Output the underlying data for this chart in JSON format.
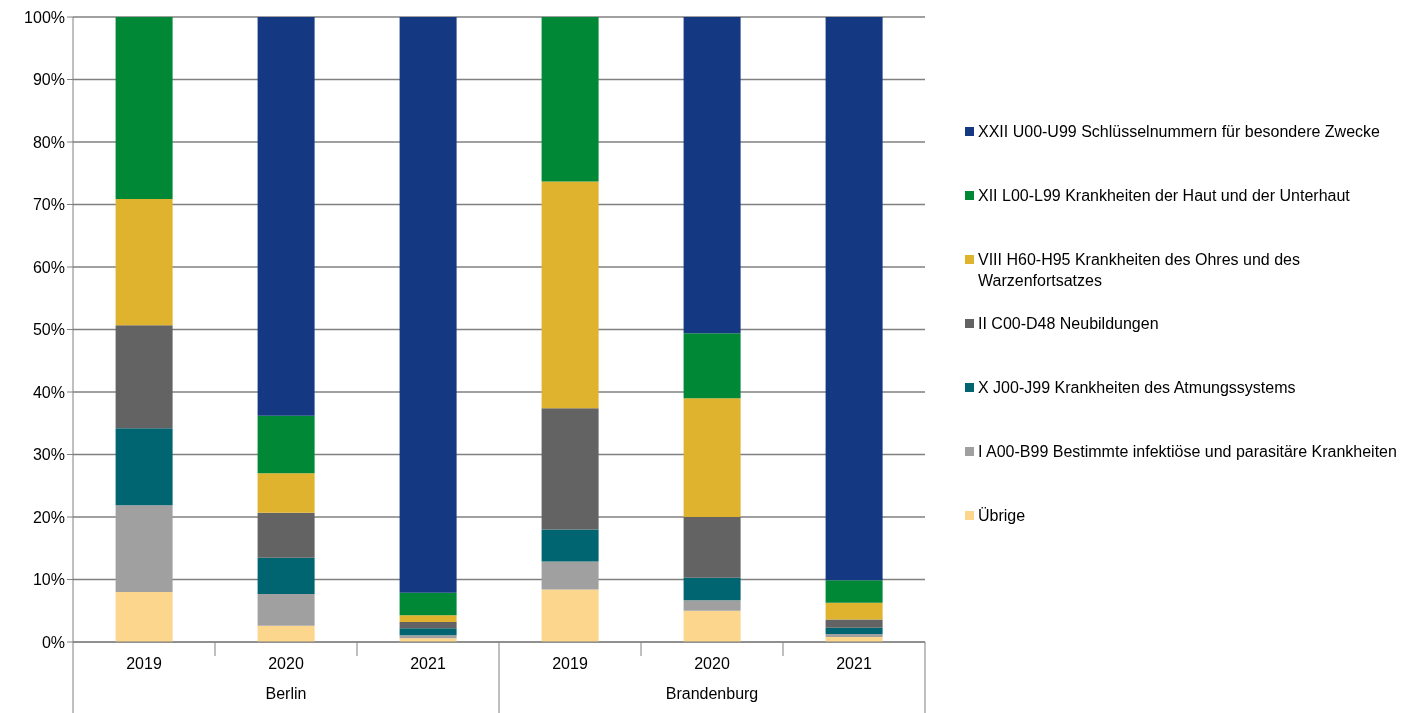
{
  "chart_data": {
    "type": "bar",
    "stacked": true,
    "categories": [
      "2019",
      "2020",
      "2021",
      "2019",
      "2020",
      "2021"
    ],
    "annotations": [
      "Berlin",
      "Brandenburg"
    ],
    "series": [
      {
        "name": "Übrige",
        "color": "#fcd68c",
        "values": [
          8.0,
          2.6,
          0.6,
          8.4,
          5.0,
          0.8
        ]
      },
      {
        "name": "I A00-B99 Bestimmte infektiöse und parasitäre Krankheiten",
        "color": "#a0a0a0",
        "values": [
          13.9,
          5.1,
          0.5,
          4.5,
          1.7,
          0.5
        ]
      },
      {
        "name": "X J00-J99 Krankheiten des Atmungssystems",
        "color": "#006570",
        "values": [
          12.3,
          5.8,
          1.1,
          5.1,
          3.6,
          1.0
        ]
      },
      {
        "name": "II C00-D48 Neubildungen",
        "color": "#636363",
        "values": [
          16.5,
          7.2,
          1.0,
          19.4,
          9.7,
          1.3
        ]
      },
      {
        "name": "VIII H60-H95 Krankheiten des Ohres und des Warzenfortsatzes",
        "color": "#e0b32e",
        "values": [
          20.2,
          6.3,
          1.1,
          36.3,
          19.0,
          2.7
        ]
      },
      {
        "name": "XII L00-L99 Krankheiten der Haut und der Unterhaut",
        "color": "#008837",
        "values": [
          29.1,
          9.2,
          3.6,
          26.3,
          10.4,
          3.6
        ]
      },
      {
        "name": "XXII U00-U99 Schlüsselnummern für besondere Zwecke",
        "color": "#153882",
        "values": [
          0,
          63.8,
          92.1,
          0,
          50.6,
          90.1
        ]
      }
    ],
    "ylim": [
      0,
      100
    ],
    "yticks": [
      {
        "value": 0,
        "label": "0%"
      },
      {
        "value": 10,
        "label": "10%"
      },
      {
        "value": 20,
        "label": "20%"
      },
      {
        "value": 30,
        "label": "30%"
      },
      {
        "value": 40,
        "label": "40%"
      },
      {
        "value": 50,
        "label": "50%"
      },
      {
        "value": 60,
        "label": "60%"
      },
      {
        "value": 70,
        "label": "70%"
      },
      {
        "value": 80,
        "label": "80%"
      },
      {
        "value": 90,
        "label": "90%"
      },
      {
        "value": 100,
        "label": "100%"
      }
    ],
    "grid": "y",
    "legend": "right"
  }
}
